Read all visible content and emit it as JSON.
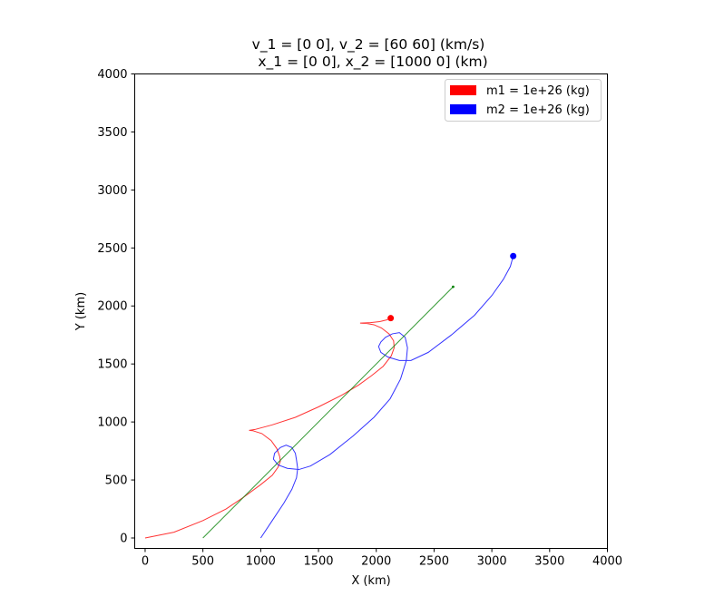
{
  "chart_data": {
    "type": "line",
    "title": [
      "v_1 = [0 0], v_2 = [60 60] (km/s)",
      "x_1 = [0 0], x_2 = [1000    0] (km)"
    ],
    "xlabel": "X (km)",
    "ylabel": "Y (km)",
    "xlim": [
      -90,
      4000
    ],
    "ylim": [
      -90,
      4000
    ],
    "xticks": [
      0,
      500,
      1000,
      1500,
      2000,
      2500,
      3000,
      3500,
      4000
    ],
    "yticks": [
      0,
      500,
      1000,
      1500,
      2000,
      2500,
      3000,
      3500,
      4000
    ],
    "xtick_labels": [
      "0",
      "500",
      "1000",
      "1500",
      "2000",
      "2500",
      "3000",
      "3500",
      "4000"
    ],
    "ytick_labels": [
      "0",
      "500",
      "1000",
      "1500",
      "2000",
      "2500",
      "3000",
      "3500",
      "4000"
    ],
    "grid": false,
    "legend_position": "top-right",
    "legend": [
      {
        "label": "m1 = 1e+26 (kg)",
        "color": "#ff0000"
      },
      {
        "label": "m2 = 1e+26 (kg)",
        "color": "#0000ff"
      }
    ],
    "series": [
      {
        "color": "#ff0000",
        "marker_end": [
          2125,
          1895
        ],
        "points": [
          [
            0,
            0
          ],
          [
            250,
            50
          ],
          [
            500,
            150
          ],
          [
            700,
            250
          ],
          [
            850,
            350
          ],
          [
            1000,
            460
          ],
          [
            1100,
            540
          ],
          [
            1150,
            610
          ],
          [
            1170,
            660
          ],
          [
            1165,
            700
          ],
          [
            1140,
            770
          ],
          [
            1090,
            840
          ],
          [
            1010,
            900
          ],
          [
            930,
            925
          ],
          [
            900,
            928
          ],
          [
            950,
            935
          ],
          [
            1100,
            975
          ],
          [
            1300,
            1040
          ],
          [
            1500,
            1130
          ],
          [
            1700,
            1230
          ],
          [
            1850,
            1320
          ],
          [
            1960,
            1400
          ],
          [
            2060,
            1480
          ],
          [
            2130,
            1570
          ],
          [
            2155,
            1640
          ],
          [
            2150,
            1700
          ],
          [
            2110,
            1760
          ],
          [
            2045,
            1810
          ],
          [
            1980,
            1838
          ],
          [
            1920,
            1848
          ],
          [
            1860,
            1852
          ],
          [
            1950,
            1856
          ],
          [
            2030,
            1865
          ],
          [
            2090,
            1880
          ],
          [
            2125,
            1895
          ]
        ]
      },
      {
        "color": "#0000ff",
        "marker_end": [
          3185,
          2430
        ],
        "points": [
          [
            1000,
            0
          ],
          [
            1100,
            150
          ],
          [
            1200,
            300
          ],
          [
            1270,
            420
          ],
          [
            1310,
            520
          ],
          [
            1320,
            600
          ],
          [
            1310,
            670
          ],
          [
            1300,
            730
          ],
          [
            1270,
            780
          ],
          [
            1220,
            800
          ],
          [
            1170,
            780
          ],
          [
            1120,
            730
          ],
          [
            1110,
            680
          ],
          [
            1150,
            630
          ],
          [
            1230,
            600
          ],
          [
            1330,
            590
          ],
          [
            1430,
            620
          ],
          [
            1600,
            720
          ],
          [
            1800,
            880
          ],
          [
            1980,
            1040
          ],
          [
            2120,
            1200
          ],
          [
            2210,
            1370
          ],
          [
            2260,
            1530
          ],
          [
            2270,
            1640
          ],
          [
            2250,
            1730
          ],
          [
            2200,
            1770
          ],
          [
            2140,
            1760
          ],
          [
            2080,
            1730
          ],
          [
            2040,
            1690
          ],
          [
            2020,
            1650
          ],
          [
            2040,
            1600
          ],
          [
            2100,
            1560
          ],
          [
            2200,
            1530
          ],
          [
            2300,
            1530
          ],
          [
            2450,
            1600
          ],
          [
            2650,
            1750
          ],
          [
            2850,
            1920
          ],
          [
            3000,
            2090
          ],
          [
            3100,
            2230
          ],
          [
            3160,
            2340
          ],
          [
            3185,
            2430
          ]
        ]
      },
      {
        "color": "#008000",
        "marker_end": [
          2665,
          2165
        ],
        "points": [
          [
            500,
            0
          ],
          [
            2665,
            2165
          ]
        ]
      }
    ]
  }
}
